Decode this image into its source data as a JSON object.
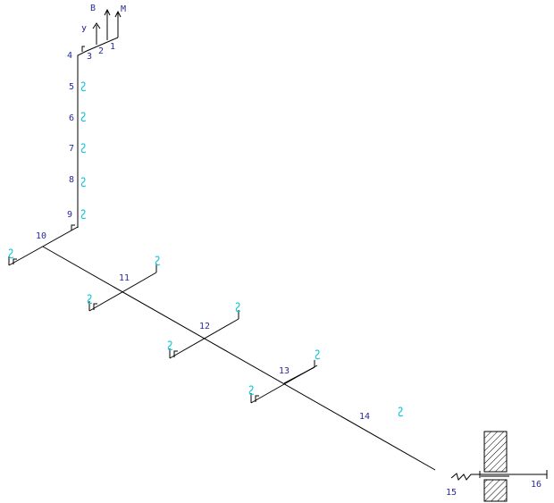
{
  "risers": {
    "v": "В",
    "u": "У",
    "m": "М"
  },
  "nodes": [
    "1",
    "2",
    "3",
    "4",
    "5",
    "6",
    "7",
    "8",
    "9",
    "10",
    "11",
    "12",
    "13",
    "14",
    "15",
    "16"
  ]
}
